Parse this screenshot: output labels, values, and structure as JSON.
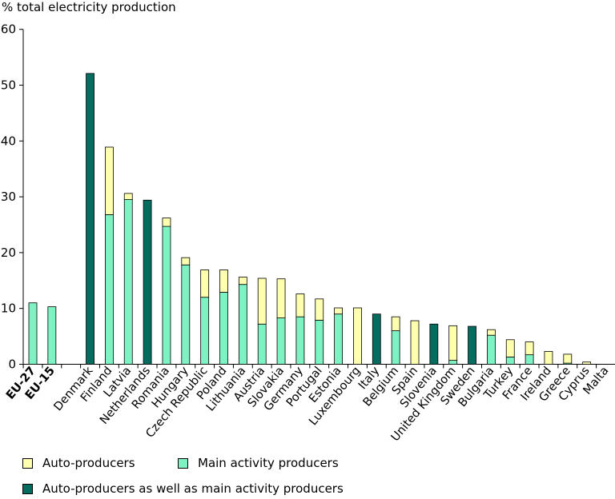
{
  "chart_data": {
    "type": "bar",
    "stacked": true,
    "ylabel": "% total electricity production",
    "ylim": [
      0,
      60
    ],
    "yticks": [
      0,
      10,
      20,
      30,
      40,
      50,
      60
    ],
    "grid": false,
    "legend_position": "bottom",
    "categories": [
      "EU-27",
      "EU-15",
      "",
      "Denmark",
      "Finland",
      "Latvia",
      "Netherlands",
      "Romania",
      "Hungary",
      "Czech Republic",
      "Poland",
      "Lithuania",
      "Austria",
      "Slovakia",
      "Germany",
      "Portugal",
      "Estonia",
      "Luxembourg",
      "Italy",
      "Belgium",
      "Spain",
      "Slovenia",
      "United Kingdom",
      "Sweden",
      "Bulgaria",
      "Turkey",
      "France",
      "Ireland",
      "Greece",
      "Cyprus",
      "Malta"
    ],
    "bold_categories": [
      "EU-27",
      "EU-15"
    ],
    "series": [
      {
        "name": "Main activity producers",
        "color": "#7ff2c4",
        "values": [
          11,
          10.3,
          0,
          0,
          26.8,
          29.5,
          0,
          24.7,
          17.8,
          12,
          12.9,
          14.3,
          7.2,
          8.3,
          8.5,
          7.9,
          9.0,
          0,
          0,
          6.0,
          0,
          0,
          0.7,
          0,
          5.2,
          1.3,
          1.7,
          0,
          0.2,
          0,
          0
        ]
      },
      {
        "name": "Auto-producers",
        "color": "#ffffb0",
        "values": [
          0,
          0,
          0,
          0,
          12.1,
          1.1,
          0,
          1.5,
          1.3,
          4.9,
          4.0,
          1.3,
          8.2,
          7.0,
          4.1,
          3.8,
          1.1,
          10.1,
          0,
          2.5,
          7.8,
          0,
          6.2,
          0,
          1.0,
          3.1,
          2.3,
          2.3,
          1.6,
          0.4,
          0
        ]
      },
      {
        "name": "Auto-producers as well as main activity producers",
        "color": "#056d5f",
        "values": [
          0,
          0,
          0,
          52.1,
          0,
          0,
          29.4,
          0,
          0,
          0,
          0,
          0,
          0,
          0,
          0,
          0,
          0,
          0,
          9.0,
          0,
          0,
          7.2,
          0,
          6.8,
          0,
          0,
          0,
          0,
          0,
          0,
          0
        ]
      }
    ]
  },
  "legend": {
    "items": [
      {
        "label": "Auto-producers",
        "color": "#ffffb0"
      },
      {
        "label": "Main activity producers",
        "color": "#7ff2c4"
      },
      {
        "label": "Auto-producers as well as main activity producers",
        "color": "#056d5f"
      }
    ]
  }
}
